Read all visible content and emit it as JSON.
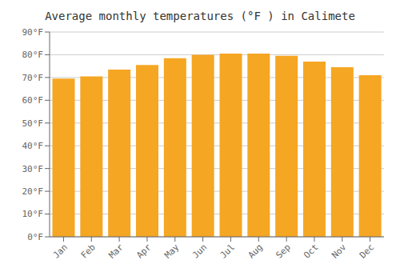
{
  "chart_data": {
    "type": "bar",
    "title": "Average monthly temperatures (°F ) in Calimete",
    "categories": [
      "Jan",
      "Feb",
      "Mar",
      "Apr",
      "May",
      "Jun",
      "Jul",
      "Aug",
      "Sep",
      "Oct",
      "Nov",
      "Dec"
    ],
    "values": [
      69.5,
      70.5,
      73.5,
      75.5,
      78.5,
      80.0,
      80.5,
      80.5,
      79.5,
      77.0,
      74.5,
      71.0
    ],
    "color": "#F5A623",
    "ylim": [
      0,
      90
    ],
    "yticks": [
      {
        "value": 0,
        "label": "0°F"
      },
      {
        "value": 10,
        "label": "10°F"
      },
      {
        "value": 20,
        "label": "20°F"
      },
      {
        "value": 30,
        "label": "30°F"
      },
      {
        "value": 40,
        "label": "40°F"
      },
      {
        "value": 50,
        "label": "50°F"
      },
      {
        "value": 60,
        "label": "60°F"
      },
      {
        "value": 70,
        "label": "70°F"
      },
      {
        "value": 80,
        "label": "80°F"
      },
      {
        "value": 90,
        "label": "90°F"
      }
    ],
    "grid": true
  }
}
